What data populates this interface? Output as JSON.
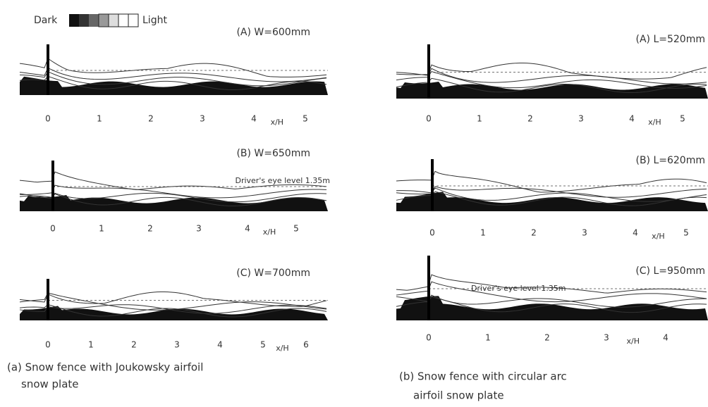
{
  "legend": {
    "dark": "Dark",
    "light": "Light"
  },
  "columns": [
    {
      "caption": [
        "(a) Snow fence with Joukowsky airfoil",
        "snow plate"
      ],
      "panels": [
        {
          "title": "(A) W=600mm",
          "ticks": [
            "0",
            "1",
            "2",
            "3",
            "4",
            "5"
          ],
          "axis_label": "x/H"
        },
        {
          "title": "(B) W=650mm",
          "ticks": [
            "0",
            "1",
            "2",
            "3",
            "4",
            "5"
          ],
          "axis_label": "x/H",
          "annotation": "Driver's eye level 1.35m"
        },
        {
          "title": "(C) W=700mm",
          "ticks": [
            "0",
            "1",
            "2",
            "3",
            "4",
            "5",
            "6"
          ],
          "axis_label": "x/H"
        }
      ]
    },
    {
      "caption": [
        "(b) Snow fence with circular arc",
        "airfoil snow plate"
      ],
      "panels": [
        {
          "title": "(A) L=520mm",
          "ticks": [
            "0",
            "1",
            "2",
            "3",
            "4",
            "5"
          ],
          "axis_label": "x/H"
        },
        {
          "title": "(B) L=620mm",
          "ticks": [
            "0",
            "1",
            "2",
            "3",
            "4",
            "5"
          ],
          "axis_label": "x/H"
        },
        {
          "title": "(C) L=950mm",
          "ticks": [
            "0",
            "1",
            "2",
            "3",
            "4"
          ],
          "axis_label": "x/H",
          "annotation": "Driver's eye level 1.35m"
        }
      ]
    }
  ]
}
